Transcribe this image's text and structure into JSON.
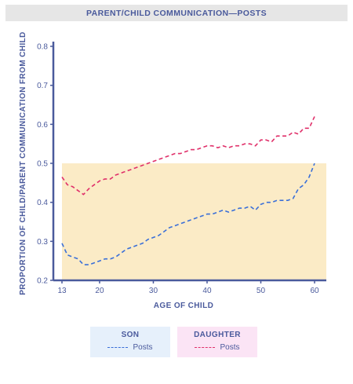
{
  "title": "PARENT/CHILD COMMUNICATION—POSTS",
  "colors": {
    "son": "#3a6fd8",
    "daughter": "#e0306a",
    "axis": "#4a5a9c",
    "band": "#fbebc6",
    "son_legend_bg": "#e6f0fb",
    "daughter_legend_bg": "#fbe4f5"
  },
  "legend": [
    {
      "group": "SON",
      "label": "Posts"
    },
    {
      "group": "DAUGHTER",
      "label": "Posts"
    }
  ],
  "chart_data": {
    "type": "line",
    "title": "PARENT/CHILD COMMUNICATION—POSTS",
    "xlabel": "AGE OF CHILD",
    "ylabel": "PROPORTION OF CHILD/PARENT COMMUNICATION FROM CHILD",
    "xlim": [
      13,
      61
    ],
    "ylim": [
      0.2,
      0.8
    ],
    "xticks": [
      13,
      20,
      30,
      40,
      50,
      60
    ],
    "yticks": [
      0.2,
      0.3,
      0.4,
      0.5,
      0.6,
      0.7,
      0.8
    ],
    "band": {
      "y0": 0.2,
      "y1": 0.5
    },
    "series": [
      {
        "name": "SON",
        "label": "Posts",
        "style": "dashed",
        "x": [
          13,
          14,
          15,
          16,
          17,
          18,
          19,
          20,
          21,
          22,
          23,
          24,
          25,
          26,
          27,
          28,
          29,
          30,
          31,
          32,
          33,
          34,
          35,
          36,
          37,
          38,
          39,
          40,
          41,
          42,
          43,
          44,
          45,
          46,
          47,
          48,
          49,
          50,
          51,
          52,
          53,
          54,
          55,
          56,
          57,
          58,
          59,
          60
        ],
        "y": [
          0.295,
          0.265,
          0.26,
          0.255,
          0.24,
          0.24,
          0.245,
          0.25,
          0.255,
          0.255,
          0.26,
          0.27,
          0.28,
          0.285,
          0.29,
          0.295,
          0.305,
          0.31,
          0.315,
          0.325,
          0.335,
          0.34,
          0.345,
          0.35,
          0.355,
          0.36,
          0.365,
          0.37,
          0.37,
          0.375,
          0.38,
          0.375,
          0.38,
          0.385,
          0.385,
          0.39,
          0.38,
          0.395,
          0.4,
          0.4,
          0.405,
          0.405,
          0.405,
          0.41,
          0.435,
          0.445,
          0.465,
          0.5
        ]
      },
      {
        "name": "DAUGHTER",
        "label": "Posts",
        "style": "dashed",
        "x": [
          13,
          14,
          15,
          16,
          17,
          18,
          19,
          20,
          21,
          22,
          23,
          24,
          25,
          26,
          27,
          28,
          29,
          30,
          31,
          32,
          33,
          34,
          35,
          36,
          37,
          38,
          39,
          40,
          41,
          42,
          43,
          44,
          45,
          46,
          47,
          48,
          49,
          50,
          51,
          52,
          53,
          54,
          55,
          56,
          57,
          58,
          59,
          60
        ],
        "y": [
          0.465,
          0.445,
          0.44,
          0.43,
          0.42,
          0.435,
          0.445,
          0.455,
          0.46,
          0.46,
          0.47,
          0.475,
          0.48,
          0.485,
          0.49,
          0.495,
          0.5,
          0.505,
          0.51,
          0.515,
          0.52,
          0.525,
          0.525,
          0.53,
          0.535,
          0.535,
          0.54,
          0.545,
          0.545,
          0.54,
          0.545,
          0.54,
          0.545,
          0.545,
          0.55,
          0.55,
          0.545,
          0.56,
          0.56,
          0.555,
          0.57,
          0.57,
          0.57,
          0.58,
          0.575,
          0.59,
          0.59,
          0.62
        ]
      }
    ]
  }
}
